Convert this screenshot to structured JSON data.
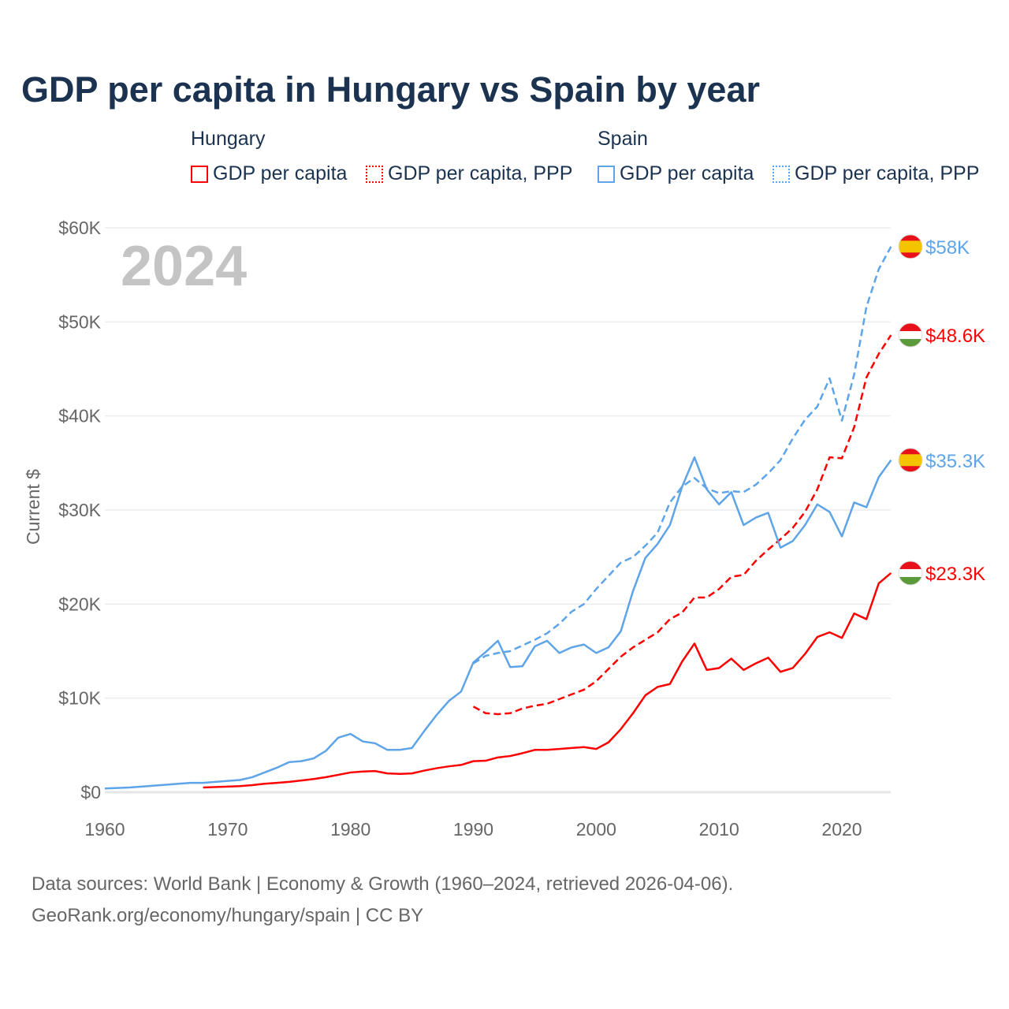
{
  "title": "GDP per capita in Hungary vs Spain by year",
  "legend": {
    "groups": [
      {
        "name": "Hungary",
        "items": [
          "GDP per capita",
          "GDP per capita, PPP"
        ]
      },
      {
        "name": "Spain",
        "items": [
          "GDP per capita",
          "GDP per capita, PPP"
        ]
      }
    ]
  },
  "source_line1": "Data sources: World Bank | Economy & Growth (1960–2024, retrieved 2026-04-06).",
  "source_line2": "GeoRank.org/economy/hungary/spain | CC BY",
  "colors": {
    "hungary": "#ff0000",
    "spain": "#5ea4e8",
    "title": "#1b3350"
  },
  "chart_data": {
    "type": "line",
    "title": "GDP per capita in Hungary vs Spain by year",
    "xlabel": "",
    "ylabel": "Current $",
    "year_label": "2024",
    "xlim": [
      1960,
      2024
    ],
    "ylim": [
      0,
      60000
    ],
    "xticks": [
      1960,
      1970,
      1980,
      1990,
      2000,
      2010,
      2020
    ],
    "yticks": [
      0,
      10000,
      20000,
      30000,
      40000,
      50000,
      60000
    ],
    "ytick_labels": [
      "$0",
      "$10K",
      "$20K",
      "$30K",
      "$40K",
      "$50K",
      "$60K"
    ],
    "grid": true,
    "series": [
      {
        "name": "Spain GDP per capita, PPP",
        "country": "spain",
        "dashed": true,
        "end_label": "$58K",
        "start": 1990,
        "values": [
          13.7,
          14.5,
          14.8,
          15.0,
          15.6,
          16.2,
          16.9,
          17.9,
          19.2,
          20.0,
          21.6,
          23.0,
          24.4,
          25.0,
          26.2,
          27.6,
          30.8,
          32.5,
          33.4,
          32.3,
          31.8,
          32.0,
          31.9,
          32.7,
          33.9,
          35.3,
          37.6,
          39.6,
          41.0,
          44.0,
          39.5,
          44.4,
          51.6,
          55.6,
          58.0
        ]
      },
      {
        "name": "Hungary GDP per capita, PPP",
        "country": "hungary",
        "dashed": true,
        "end_label": "$48.6K",
        "start": 1990,
        "values": [
          9.1,
          8.4,
          8.3,
          8.4,
          8.9,
          9.2,
          9.4,
          9.9,
          10.4,
          10.9,
          11.8,
          13.1,
          14.4,
          15.4,
          16.2,
          17.0,
          18.4,
          19.1,
          20.7,
          20.7,
          21.6,
          22.9,
          23.1,
          24.6,
          25.8,
          26.9,
          28.1,
          29.8,
          32.2,
          35.6,
          35.5,
          38.8,
          44.1,
          46.6,
          48.6
        ]
      },
      {
        "name": "Spain GDP per capita",
        "country": "spain",
        "dashed": false,
        "end_label": "$35.3K",
        "start": 1960,
        "values": [
          0.4,
          0.45,
          0.5,
          0.6,
          0.7,
          0.8,
          0.9,
          1.0,
          1.0,
          1.1,
          1.2,
          1.3,
          1.6,
          2.1,
          2.6,
          3.2,
          3.3,
          3.6,
          4.4,
          5.8,
          6.2,
          5.4,
          5.2,
          4.5,
          4.5,
          4.7,
          6.5,
          8.2,
          9.7,
          10.7,
          13.8,
          14.9,
          16.1,
          13.3,
          13.4,
          15.5,
          16.1,
          14.8,
          15.4,
          15.7,
          14.8,
          15.4,
          17.1,
          21.4,
          24.9,
          26.4,
          28.4,
          32.5,
          35.6,
          32.2,
          30.6,
          31.9,
          28.4,
          29.2,
          29.7,
          26.0,
          26.7,
          28.4,
          30.6,
          29.8,
          27.2,
          30.8,
          30.3,
          33.5,
          35.3
        ]
      },
      {
        "name": "Hungary GDP per capita",
        "country": "hungary",
        "dashed": false,
        "end_label": "$23.3K",
        "start": 1968,
        "values": [
          0.5,
          0.55,
          0.6,
          0.65,
          0.75,
          0.9,
          1.0,
          1.1,
          1.25,
          1.4,
          1.6,
          1.85,
          2.1,
          2.2,
          2.25,
          2.0,
          1.95,
          2.0,
          2.3,
          2.55,
          2.75,
          2.9,
          3.3,
          3.35,
          3.7,
          3.85,
          4.15,
          4.5,
          4.5,
          4.6,
          4.7,
          4.8,
          4.6,
          5.3,
          6.7,
          8.4,
          10.3,
          11.2,
          11.5,
          13.9,
          15.8,
          13.0,
          13.2,
          14.2,
          13.0,
          13.7,
          14.3,
          12.8,
          13.2,
          14.7,
          16.5,
          17.0,
          16.4,
          19.0,
          18.4,
          22.2,
          23.3
        ]
      }
    ],
    "value_unit": "thousand USD"
  }
}
